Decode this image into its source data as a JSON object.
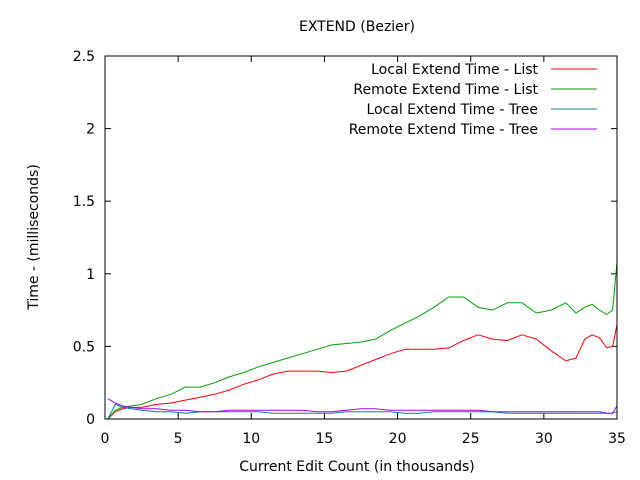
{
  "chart_data": {
    "type": "line",
    "title": "EXTEND (Bezier)",
    "xlabel": "Current Edit Count (in thousands)",
    "ylabel": "Time - (milliseconds)",
    "xlim": [
      0,
      35
    ],
    "ylim": [
      0,
      2.5
    ],
    "xticks": [
      0,
      5,
      10,
      15,
      20,
      25,
      30,
      35
    ],
    "yticks": [
      0,
      0.5,
      1,
      1.5,
      2,
      2.5
    ],
    "grid": false,
    "legend_position": "top-right",
    "series": [
      {
        "name": "Local Extend Time - List",
        "color": "#ff0000",
        "x": [
          0.2,
          0.7,
          1.2,
          1.8,
          2.5,
          3.5,
          4.5,
          5.5,
          6.5,
          7.5,
          8.5,
          9.5,
          10.5,
          11.5,
          12.5,
          13.5,
          14.5,
          15.5,
          16.5,
          17.5,
          18.5,
          19.5,
          20.5,
          21.5,
          22.5,
          23.5,
          24.5,
          25.5,
          26.5,
          27.5,
          28.5,
          29.5,
          30.5,
          31.5,
          32.2,
          32.8,
          33.3,
          33.8,
          34.3,
          34.7,
          35.0
        ],
        "y": [
          0.0,
          0.05,
          0.07,
          0.08,
          0.08,
          0.1,
          0.11,
          0.13,
          0.15,
          0.17,
          0.2,
          0.24,
          0.27,
          0.31,
          0.33,
          0.33,
          0.33,
          0.32,
          0.33,
          0.37,
          0.41,
          0.45,
          0.48,
          0.48,
          0.48,
          0.49,
          0.54,
          0.58,
          0.55,
          0.54,
          0.58,
          0.55,
          0.47,
          0.4,
          0.42,
          0.55,
          0.58,
          0.56,
          0.49,
          0.5,
          0.65
        ]
      },
      {
        "name": "Remote Extend Time - List",
        "color": "#00a000",
        "x": [
          0.2,
          0.7,
          1.2,
          1.8,
          2.5,
          3.5,
          4.5,
          5.5,
          6.5,
          7.5,
          8.5,
          9.5,
          10.5,
          11.5,
          12.5,
          13.5,
          14.5,
          15.5,
          16.5,
          17.5,
          18.5,
          19.5,
          20.5,
          21.5,
          22.5,
          23.5,
          24.5,
          25.5,
          26.5,
          27.5,
          28.5,
          29.5,
          30.5,
          31.5,
          32.2,
          32.8,
          33.3,
          33.8,
          34.3,
          34.7,
          35.0
        ],
        "y": [
          0.0,
          0.06,
          0.08,
          0.09,
          0.1,
          0.14,
          0.17,
          0.22,
          0.22,
          0.25,
          0.29,
          0.32,
          0.36,
          0.39,
          0.42,
          0.45,
          0.48,
          0.51,
          0.52,
          0.53,
          0.55,
          0.61,
          0.66,
          0.71,
          0.77,
          0.84,
          0.84,
          0.77,
          0.75,
          0.8,
          0.8,
          0.73,
          0.75,
          0.8,
          0.73,
          0.77,
          0.79,
          0.75,
          0.72,
          0.75,
          1.08
        ]
      },
      {
        "name": "Local Extend Time - Tree",
        "color": "#0080a0",
        "x": [
          0.2,
          0.7,
          1.2,
          1.8,
          2.5,
          3.5,
          4.5,
          5.5,
          6.5,
          7.5,
          8.5,
          9.5,
          10.5,
          11.5,
          12.5,
          13.5,
          14.5,
          15.5,
          16.5,
          17.5,
          18.5,
          19.5,
          20.5,
          21.5,
          22.5,
          23.5,
          24.5,
          25.5,
          26.5,
          27.5,
          28.5,
          29.5,
          30.5,
          31.5,
          32.2,
          32.8,
          33.3,
          33.8,
          34.3,
          34.7,
          35.0
        ],
        "y": [
          0.0,
          0.1,
          0.08,
          0.07,
          0.06,
          0.05,
          0.05,
          0.04,
          0.05,
          0.05,
          0.05,
          0.05,
          0.05,
          0.04,
          0.04,
          0.04,
          0.04,
          0.04,
          0.05,
          0.05,
          0.05,
          0.05,
          0.04,
          0.04,
          0.05,
          0.05,
          0.05,
          0.05,
          0.05,
          0.04,
          0.04,
          0.04,
          0.04,
          0.04,
          0.04,
          0.04,
          0.04,
          0.04,
          0.04,
          0.04,
          0.05
        ]
      },
      {
        "name": "Remote Extend Time - Tree",
        "color": "#a000ff",
        "x": [
          0.2,
          0.7,
          1.2,
          1.8,
          2.5,
          3.5,
          4.5,
          5.5,
          6.5,
          7.5,
          8.5,
          9.5,
          10.5,
          11.5,
          12.5,
          13.5,
          14.5,
          15.5,
          16.5,
          17.5,
          18.5,
          19.5,
          20.5,
          21.5,
          22.5,
          23.5,
          24.5,
          25.5,
          26.5,
          27.5,
          28.5,
          29.5,
          30.5,
          31.5,
          32.2,
          32.8,
          33.3,
          33.8,
          34.3,
          34.7,
          35.0
        ],
        "y": [
          0.14,
          0.11,
          0.09,
          0.08,
          0.07,
          0.07,
          0.06,
          0.06,
          0.05,
          0.05,
          0.06,
          0.06,
          0.06,
          0.06,
          0.06,
          0.06,
          0.05,
          0.05,
          0.06,
          0.07,
          0.07,
          0.06,
          0.06,
          0.06,
          0.06,
          0.06,
          0.06,
          0.06,
          0.05,
          0.05,
          0.05,
          0.05,
          0.05,
          0.05,
          0.05,
          0.05,
          0.05,
          0.05,
          0.04,
          0.04,
          0.09
        ]
      }
    ]
  }
}
